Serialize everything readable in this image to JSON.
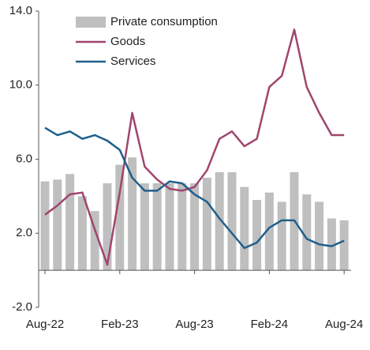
{
  "chart_data": {
    "type": "bar-line",
    "categories": [
      "Aug-22",
      null,
      null,
      null,
      null,
      null,
      "Feb-23",
      null,
      null,
      null,
      null,
      null,
      "Aug-23",
      null,
      null,
      null,
      null,
      null,
      "Feb-24",
      null,
      null,
      null,
      null,
      null,
      "Aug-24"
    ],
    "series": [
      {
        "name": "Private consumption",
        "type": "bar",
        "color": "#bfbfbf",
        "values": [
          4.8,
          4.9,
          5.2,
          4.0,
          3.2,
          4.7,
          5.7,
          6.1,
          4.7,
          4.7,
          4.7,
          4.7,
          4.7,
          5.0,
          5.3,
          5.3,
          4.5,
          3.8,
          4.2,
          3.7,
          5.3,
          4.1,
          3.7,
          2.8,
          2.7
        ]
      },
      {
        "name": "Goods",
        "type": "line",
        "color": "#a0456e",
        "values": [
          3.0,
          3.5,
          4.1,
          4.2,
          2.2,
          0.3,
          4.2,
          8.5,
          5.6,
          4.9,
          4.4,
          4.3,
          4.5,
          5.4,
          7.1,
          7.5,
          6.7,
          7.1,
          9.9,
          10.5,
          13.0,
          9.9,
          8.5,
          7.3,
          7.3
        ]
      },
      {
        "name": "Services",
        "type": "line",
        "color": "#1f5f8b",
        "values": [
          7.7,
          7.3,
          7.5,
          7.1,
          7.3,
          7.0,
          6.5,
          5.0,
          4.3,
          4.3,
          4.8,
          4.7,
          4.1,
          3.7,
          2.8,
          2.0,
          1.2,
          1.5,
          2.3,
          2.7,
          2.7,
          1.7,
          1.4,
          1.3,
          1.6
        ]
      }
    ],
    "ylim": [
      -2,
      14
    ],
    "yticks": [
      {
        "value": -2,
        "label": "-2.0"
      },
      {
        "value": 2,
        "label": "2.0"
      },
      {
        "value": 6,
        "label": "6.0"
      },
      {
        "value": 10,
        "label": "10.0"
      },
      {
        "value": 14,
        "label": "14.0"
      }
    ],
    "grid": false
  }
}
